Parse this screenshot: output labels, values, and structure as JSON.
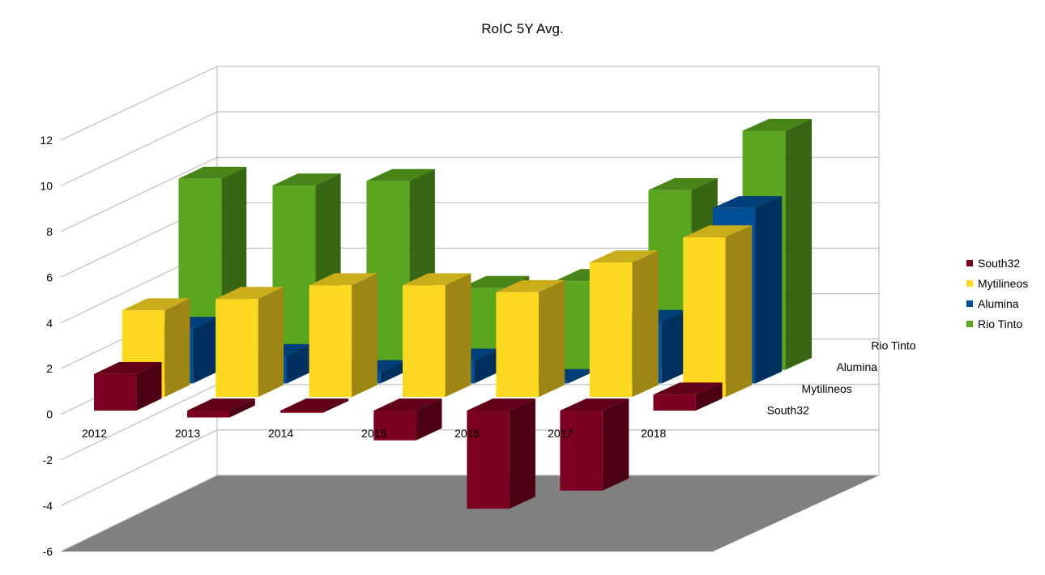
{
  "chart_data": {
    "type": "bar",
    "title": "RoIC 5Y Avg.",
    "categories": [
      "2012",
      "2013",
      "2014",
      "2015",
      "2016",
      "2017",
      "2018"
    ],
    "series": [
      {
        "name": "South32",
        "color": "#7b0020",
        "values": [
          1.6,
          -0.3,
          -0.1,
          -1.3,
          -4.3,
          -3.5,
          0.7
        ]
      },
      {
        "name": "Mytilineos",
        "color": "#fdd820",
        "values": [
          3.8,
          4.3,
          4.9,
          4.9,
          4.6,
          5.9,
          7.0
        ]
      },
      {
        "name": "Alumina",
        "color": "#004f97",
        "values": [
          2.4,
          1.2,
          0.5,
          1.0,
          0.1,
          2.7,
          7.7
        ]
      },
      {
        "name": "Rio Tinto",
        "color": "#5aa61e",
        "values": [
          8.4,
          8.1,
          8.3,
          3.6,
          3.9,
          7.9,
          10.5
        ]
      }
    ],
    "ylim": [
      -6,
      12
    ],
    "yticks": [
      "12",
      "10",
      "8",
      "6",
      "4",
      "2",
      "0",
      "-2",
      "-4",
      "-6"
    ],
    "grid": true,
    "legend_position": "right"
  }
}
